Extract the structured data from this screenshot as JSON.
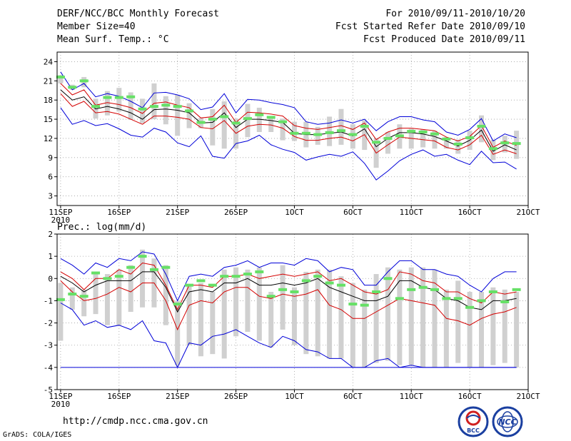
{
  "header": {
    "title": "DERF/NCC/BCC Monthly Forecast",
    "member_size": "Member Size=40",
    "variable": "Mean Surf. Temp.: °C",
    "period": "For 2010/09/11-2010/10/20",
    "started": "Fcst Started Refer Date 2010/09/10",
    "produced": "Fcst Produced Date 2010/09/11"
  },
  "footer": {
    "url": "http://cmdp.ncc.cma.gov.cn",
    "credit": "GrADS: COLA/IGES",
    "logo_left_text": "BCC",
    "logo_right_text": "NCC"
  },
  "colors": {
    "ensemble_mean": "#000000",
    "spread_inner": "#d40000",
    "spread_outer": "#0000d8",
    "member_box": "#d0d0d0",
    "median_mark": "#66e066",
    "grid": "#a0a0a0"
  },
  "chart_data": [
    {
      "type": "line",
      "title": "Mean Surf. Temp.: °C",
      "x": [
        1,
        2,
        3,
        4,
        5,
        6,
        7,
        8,
        9,
        10,
        11,
        12,
        13,
        14,
        15,
        16,
        17,
        18,
        19,
        20,
        21,
        22,
        23,
        24,
        25,
        26,
        27,
        28,
        29,
        30,
        31,
        32,
        33,
        34,
        35,
        36,
        37,
        38,
        39,
        40
      ],
      "x_ticks": [
        {
          "x": 1,
          "label": "11SEP",
          "sub": "2010"
        },
        {
          "x": 6,
          "label": "16SEP"
        },
        {
          "x": 11,
          "label": "21SEP"
        },
        {
          "x": 16,
          "label": "26SEP"
        },
        {
          "x": 21,
          "label": "1OCT"
        },
        {
          "x": 26,
          "label": "6OCT"
        },
        {
          "x": 31,
          "label": "11OCT"
        },
        {
          "x": 36,
          "label": "16OCT"
        },
        {
          "x": 41,
          "label": "21OCT"
        }
      ],
      "xlim": [
        0.7,
        41
      ],
      "ylim": [
        1.5,
        25.5
      ],
      "y_ticks": [
        3,
        6,
        9,
        12,
        15,
        18,
        21,
        24
      ],
      "grid": true,
      "series": [
        {
          "name": "max",
          "role": "outer",
          "values": [
            22.4,
            19.6,
            20.6,
            18.5,
            19.0,
            18.6,
            17.8,
            16.8,
            19.1,
            19.2,
            18.8,
            18.2,
            16.5,
            16.9,
            19.0,
            16.0,
            18.1,
            18.0,
            17.6,
            17.3,
            16.8,
            14.6,
            14.2,
            14.4,
            14.9,
            14.4,
            15.0,
            13.2,
            14.6,
            15.4,
            15.4,
            14.9,
            14.6,
            13.0,
            12.5,
            13.4,
            15.1,
            11.6,
            12.7,
            12.1
          ]
        },
        {
          "name": "p90",
          "role": "inner",
          "values": [
            20.6,
            18.8,
            19.6,
            17.2,
            17.6,
            17.3,
            16.8,
            15.9,
            17.5,
            17.7,
            17.2,
            16.8,
            15.2,
            15.4,
            17.2,
            14.5,
            16.1,
            16.0,
            15.8,
            15.5,
            14.0,
            13.6,
            13.4,
            13.7,
            14.0,
            13.4,
            14.4,
            11.8,
            13.0,
            13.6,
            13.6,
            13.4,
            13.2,
            12.2,
            11.6,
            12.3,
            14.0,
            10.6,
            11.6,
            10.9
          ]
        },
        {
          "name": "mean",
          "role": "mean",
          "values": [
            19.6,
            18.0,
            18.5,
            16.6,
            17.0,
            16.6,
            16.0,
            15.0,
            16.5,
            16.6,
            16.4,
            16.0,
            14.4,
            14.5,
            16.0,
            13.7,
            15.0,
            15.0,
            14.8,
            14.5,
            12.8,
            12.6,
            12.6,
            12.8,
            13.0,
            12.4,
            13.5,
            10.7,
            12.0,
            12.9,
            12.9,
            12.7,
            12.3,
            11.6,
            10.8,
            11.7,
            13.3,
            10.0,
            11.0,
            10.2
          ]
        },
        {
          "name": "p10",
          "role": "inner",
          "values": [
            19.0,
            17.0,
            17.8,
            16.0,
            16.2,
            15.8,
            15.0,
            14.2,
            15.5,
            15.5,
            15.3,
            15.0,
            13.7,
            13.5,
            14.8,
            12.8,
            13.9,
            14.2,
            14.1,
            13.6,
            12.3,
            11.7,
            11.7,
            12.0,
            12.2,
            11.6,
            12.6,
            9.7,
            11.0,
            12.2,
            12.0,
            11.8,
            11.6,
            10.6,
            10.2,
            11.0,
            12.5,
            9.5,
            10.2,
            9.6
          ]
        },
        {
          "name": "min",
          "role": "outer",
          "values": [
            16.8,
            14.2,
            14.8,
            14.0,
            14.3,
            13.5,
            12.5,
            12.2,
            13.6,
            13.0,
            11.3,
            10.7,
            12.4,
            9.2,
            8.9,
            11.2,
            11.6,
            12.5,
            11.0,
            10.3,
            9.8,
            8.6,
            9.1,
            9.5,
            9.2,
            9.9,
            8.1,
            5.5,
            6.9,
            8.5,
            9.5,
            10.2,
            9.2,
            9.5,
            8.6,
            7.9,
            10.0,
            8.2,
            8.3,
            7.2
          ]
        }
      ],
      "boxes": [
        {
          "lo": 20.6,
          "hi": 21.9,
          "med": 21.6
        },
        {
          "lo": 19.6,
          "hi": 20.4,
          "med": 20.0
        },
        {
          "lo": 20.0,
          "hi": 21.6,
          "med": 21.0
        },
        {
          "lo": 15.1,
          "hi": 18.2,
          "med": 17.0
        },
        {
          "lo": 15.6,
          "hi": 19.4,
          "med": 18.4
        },
        {
          "lo": 16.2,
          "hi": 19.9,
          "med": 18.4
        },
        {
          "lo": 14.9,
          "hi": 19.2,
          "med": 18.5
        },
        {
          "lo": 14.4,
          "hi": 18.2,
          "med": 16.6
        },
        {
          "lo": 15.0,
          "hi": 20.6,
          "med": 17.0
        },
        {
          "lo": 14.2,
          "hi": 18.6,
          "med": 17.2
        },
        {
          "lo": 12.4,
          "hi": 18.8,
          "med": 17.0
        },
        {
          "lo": 13.6,
          "hi": 17.5,
          "med": 16.3
        },
        {
          "lo": 13.6,
          "hi": 15.2,
          "med": 14.5
        },
        {
          "lo": 10.9,
          "hi": 16.6,
          "med": 15.0
        },
        {
          "lo": 10.4,
          "hi": 17.8,
          "med": 15.4
        },
        {
          "lo": 10.4,
          "hi": 15.1,
          "med": 14.4
        },
        {
          "lo": 12.2,
          "hi": 17.4,
          "med": 15.1
        },
        {
          "lo": 13.0,
          "hi": 16.8,
          "med": 15.7
        },
        {
          "lo": 13.0,
          "hi": 15.4,
          "med": 15.3
        },
        {
          "lo": 11.7,
          "hi": 15.1,
          "med": 14.6
        },
        {
          "lo": 11.6,
          "hi": 14.6,
          "med": 12.8
        },
        {
          "lo": 10.6,
          "hi": 14.6,
          "med": 12.8
        },
        {
          "lo": 11.0,
          "hi": 13.8,
          "med": 12.6
        },
        {
          "lo": 10.8,
          "hi": 15.4,
          "med": 12.9
        },
        {
          "lo": 11.0,
          "hi": 16.6,
          "med": 13.2
        },
        {
          "lo": 10.4,
          "hi": 14.2,
          "med": 12.6
        },
        {
          "lo": 10.2,
          "hi": 14.8,
          "med": 13.9
        },
        {
          "lo": 7.4,
          "hi": 12.0,
          "med": 11.4
        },
        {
          "lo": 9.6,
          "hi": 13.0,
          "med": 12.0
        },
        {
          "lo": 10.4,
          "hi": 14.2,
          "med": 12.4
        },
        {
          "lo": 10.4,
          "hi": 13.5,
          "med": 13.1
        },
        {
          "lo": 10.6,
          "hi": 13.4,
          "med": 13.0
        },
        {
          "lo": 10.4,
          "hi": 13.2,
          "med": 12.7
        },
        {
          "lo": 10.4,
          "hi": 12.2,
          "med": 11.9
        },
        {
          "lo": 9.6,
          "hi": 11.8,
          "med": 11.1
        },
        {
          "lo": 10.2,
          "hi": 13.2,
          "med": 12.1
        },
        {
          "lo": 11.4,
          "hi": 15.6,
          "med": 13.9
        },
        {
          "lo": 8.6,
          "hi": 11.8,
          "med": 10.4
        },
        {
          "lo": 9.8,
          "hi": 12.4,
          "med": 11.3
        },
        {
          "lo": 8.8,
          "hi": 13.2,
          "med": 11.2
        }
      ]
    },
    {
      "type": "line",
      "title": "Prec.: log(mm/d)",
      "x": [
        1,
        2,
        3,
        4,
        5,
        6,
        7,
        8,
        9,
        10,
        11,
        12,
        13,
        14,
        15,
        16,
        17,
        18,
        19,
        20,
        21,
        22,
        23,
        24,
        25,
        26,
        27,
        28,
        29,
        30,
        31,
        32,
        33,
        34,
        35,
        36,
        37,
        38,
        39,
        40
      ],
      "x_ticks": [
        {
          "x": 1,
          "label": "11SEP",
          "sub": "2010"
        },
        {
          "x": 6,
          "label": "16SEP"
        },
        {
          "x": 11,
          "label": "21SEP"
        },
        {
          "x": 16,
          "label": "26SEP"
        },
        {
          "x": 21,
          "label": "1OCT"
        },
        {
          "x": 26,
          "label": "6OCT"
        },
        {
          "x": 31,
          "label": "11OCT"
        },
        {
          "x": 36,
          "label": "16OCT"
        },
        {
          "x": 41,
          "label": "21OCT"
        }
      ],
      "xlim": [
        0.7,
        41
      ],
      "ylim": [
        -5,
        2
      ],
      "y_ticks": [
        -5,
        -4,
        -3,
        -2,
        -1,
        0,
        1,
        2
      ],
      "grid": true,
      "series": [
        {
          "name": "max",
          "role": "outer",
          "values": [
            0.9,
            0.6,
            0.2,
            0.7,
            0.5,
            0.9,
            0.8,
            1.2,
            1.1,
            0.2,
            -1.0,
            0.1,
            0.2,
            0.1,
            0.5,
            0.6,
            0.8,
            0.5,
            0.7,
            0.7,
            0.6,
            0.9,
            0.8,
            0.3,
            0.5,
            0.4,
            -0.3,
            -0.3,
            0.3,
            0.8,
            0.8,
            0.4,
            0.4,
            0.2,
            0.1,
            -0.3,
            -0.6,
            0.0,
            0.3,
            0.3
          ]
        },
        {
          "name": "p90",
          "role": "inner",
          "values": [
            0.3,
            0.0,
            -0.5,
            0.0,
            0.0,
            0.4,
            0.2,
            0.7,
            0.6,
            -0.3,
            -1.4,
            -0.3,
            -0.3,
            -0.4,
            0.1,
            0.1,
            0.2,
            0.0,
            0.1,
            0.2,
            0.1,
            0.2,
            0.3,
            -0.1,
            0.0,
            -0.3,
            -0.6,
            -0.7,
            -0.5,
            0.3,
            0.2,
            -0.1,
            -0.2,
            -0.6,
            -0.6,
            -0.9,
            -1.1,
            -0.6,
            -0.7,
            -0.6
          ]
        },
        {
          "name": "mean",
          "role": "mean",
          "values": [
            0.1,
            -0.2,
            -0.6,
            -0.3,
            -0.1,
            -0.1,
            -0.1,
            0.3,
            0.3,
            -0.4,
            -1.5,
            -0.6,
            -0.5,
            -0.6,
            -0.2,
            -0.2,
            0.0,
            -0.3,
            -0.3,
            -0.2,
            -0.3,
            -0.2,
            0.0,
            -0.4,
            -0.6,
            -0.8,
            -1.0,
            -1.0,
            -0.8,
            -0.1,
            -0.1,
            -0.4,
            -0.5,
            -0.9,
            -1.0,
            -1.3,
            -1.4,
            -1.0,
            -1.0,
            -0.9
          ]
        },
        {
          "name": "p10",
          "role": "inner",
          "values": [
            -0.1,
            -0.6,
            -1.0,
            -0.9,
            -0.7,
            -0.4,
            -0.6,
            -0.2,
            -0.2,
            -1.0,
            -2.3,
            -1.2,
            -1.0,
            -1.1,
            -0.6,
            -0.4,
            -0.4,
            -0.8,
            -0.9,
            -0.7,
            -0.8,
            -0.7,
            -0.5,
            -1.2,
            -1.4,
            -1.8,
            -1.8,
            -1.5,
            -1.2,
            -0.9,
            -1.0,
            -1.1,
            -1.2,
            -1.8,
            -1.9,
            -2.1,
            -1.8,
            -1.6,
            -1.5,
            -1.3
          ]
        },
        {
          "name": "min",
          "role": "outer",
          "values": [
            -1.1,
            -1.4,
            -2.1,
            -1.9,
            -2.2,
            -2.1,
            -2.3,
            -1.9,
            -2.8,
            -2.9,
            -4.0,
            -2.9,
            -3.0,
            -2.6,
            -2.5,
            -2.3,
            -2.6,
            -2.9,
            -3.1,
            -2.6,
            -2.8,
            -3.2,
            -3.3,
            -3.6,
            -3.6,
            -4.0,
            -4.0,
            -3.7,
            -3.6,
            -4.0,
            -3.9,
            -4.0,
            -4.0,
            -4.0,
            -4.0,
            -4.0,
            -4.0,
            -4.0,
            -4.0,
            -4.0
          ]
        },
        {
          "name": "floor",
          "role": "floor",
          "values": [
            -4,
            -4,
            -4,
            -4,
            -4,
            -4,
            -4,
            -4,
            -4,
            -4,
            -4,
            -4,
            -4,
            -4,
            -4,
            -4,
            -4,
            -4,
            -4,
            -4,
            -4,
            -4,
            -4,
            -4,
            -4,
            -4,
            -4,
            -4,
            -4,
            -4,
            -4,
            -4,
            -4,
            -4,
            -4,
            -4,
            -4,
            -4,
            -4,
            -4
          ]
        }
      ],
      "boxes": [
        {
          "lo": -2.8,
          "hi": -0.2,
          "med": -0.95
        },
        {
          "lo": -1.4,
          "hi": -0.4,
          "med": -0.7
        },
        {
          "lo": -1.7,
          "hi": -0.5,
          "med": -0.8
        },
        {
          "lo": -1.6,
          "hi": 0.2,
          "med": 0.25
        },
        {
          "lo": -2.1,
          "hi": 0.2,
          "med": 0.0
        },
        {
          "lo": -2.1,
          "hi": 0.4,
          "med": 0.1
        },
        {
          "lo": -1.5,
          "hi": 0.6,
          "med": 0.5
        },
        {
          "lo": -1.3,
          "hi": 1.3,
          "med": 1.0
        },
        {
          "lo": -1.3,
          "hi": 0.9,
          "med": 0.4
        },
        {
          "lo": -2.1,
          "hi": 0.6,
          "med": 0.5
        },
        {
          "lo": -3.9,
          "hi": -1.0,
          "med": -1.15
        },
        {
          "lo": -3.0,
          "hi": -0.3,
          "med": -0.3
        },
        {
          "lo": -3.5,
          "hi": -0.2,
          "med": -0.1
        },
        {
          "lo": -3.4,
          "hi": -0.6,
          "med": -0.3
        },
        {
          "lo": -3.6,
          "hi": 0.4,
          "med": 0.1
        },
        {
          "lo": -2.6,
          "hi": 0.5,
          "med": 0.1
        },
        {
          "lo": -2.4,
          "hi": 0.4,
          "med": 0.2
        },
        {
          "lo": -2.8,
          "hi": 0.5,
          "med": 0.3
        },
        {
          "lo": -3.1,
          "hi": -0.6,
          "med": -0.8
        },
        {
          "lo": -2.3,
          "hi": 0.6,
          "med": -0.5
        },
        {
          "lo": -3.0,
          "hi": -0.4,
          "med": -0.6
        },
        {
          "lo": -3.4,
          "hi": 0.3,
          "med": -0.1
        },
        {
          "lo": -3.5,
          "hi": 0.4,
          "med": 0.1
        },
        {
          "lo": -3.6,
          "hi": 0.4,
          "med": -0.2
        },
        {
          "lo": -3.6,
          "hi": 0.1,
          "med": -0.3
        },
        {
          "lo": -4.0,
          "hi": -0.2,
          "med": -1.15
        },
        {
          "lo": -4.0,
          "hi": -0.5,
          "med": -1.2
        },
        {
          "lo": -3.8,
          "hi": 0.2,
          "med": -0.6
        },
        {
          "lo": -3.7,
          "hi": 0.5,
          "med": 0.0
        },
        {
          "lo": -3.9,
          "hi": 0.4,
          "med": -0.9
        },
        {
          "lo": -3.9,
          "hi": 0.5,
          "med": -0.5
        },
        {
          "lo": -4.0,
          "hi": 0.5,
          "med": -0.4
        },
        {
          "lo": -4.0,
          "hi": 0.4,
          "med": -0.5
        },
        {
          "lo": -4.0,
          "hi": -0.5,
          "med": -0.9
        },
        {
          "lo": -3.8,
          "hi": -0.1,
          "med": -0.9
        },
        {
          "lo": -4.0,
          "hi": -0.6,
          "med": -1.3
        },
        {
          "lo": -4.0,
          "hi": -0.6,
          "med": -1.0
        },
        {
          "lo": -3.9,
          "hi": -0.4,
          "med": -0.6
        },
        {
          "lo": -3.8,
          "hi": -0.5,
          "med": -1.05
        },
        {
          "lo": -4.0,
          "hi": -0.6,
          "med": -0.5
        }
      ]
    }
  ]
}
